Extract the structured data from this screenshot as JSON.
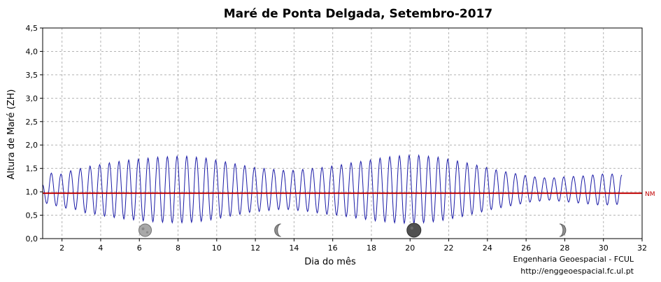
{
  "chart_data": {
    "type": "line",
    "title": "Maré de Ponta Delgada, Setembro-2017",
    "xlabel": "Dia do mês",
    "ylabel": "Altura de Maré (ZH)",
    "xlim": [
      1,
      32
    ],
    "ylim": [
      0,
      4.5
    ],
    "x_ticks": [
      2,
      4,
      6,
      8,
      10,
      12,
      14,
      16,
      18,
      20,
      22,
      24,
      26,
      28,
      30,
      32
    ],
    "y_ticks": [
      "0,0",
      "0,5",
      "1,0",
      "1,5",
      "2,0",
      "2,5",
      "3,0",
      "3,5",
      "4,0",
      "4,5"
    ],
    "grid": true,
    "colors": {
      "tide": "#1a1aa6",
      "mean_level": "#c00000"
    },
    "mean_level": {
      "label": "NM",
      "value": 0.97
    },
    "series": [
      {
        "values_note": "semidiurnal tide; high/low water per tide cycle (day, height m ZH)",
        "extremes": [
          [
            1.0,
            1.15
          ],
          [
            1.21,
            0.75
          ],
          [
            1.45,
            1.4
          ],
          [
            1.7,
            0.7
          ],
          [
            1.95,
            1.38
          ],
          [
            2.2,
            0.65
          ],
          [
            2.45,
            1.45
          ],
          [
            2.7,
            0.62
          ],
          [
            2.95,
            1.5
          ],
          [
            3.2,
            0.55
          ],
          [
            3.45,
            1.55
          ],
          [
            3.7,
            0.52
          ],
          [
            3.95,
            1.58
          ],
          [
            4.2,
            0.48
          ],
          [
            4.45,
            1.62
          ],
          [
            4.7,
            0.45
          ],
          [
            4.95,
            1.65
          ],
          [
            5.2,
            0.42
          ],
          [
            5.45,
            1.68
          ],
          [
            5.7,
            0.4
          ],
          [
            5.95,
            1.7
          ],
          [
            6.2,
            0.38
          ],
          [
            6.45,
            1.72
          ],
          [
            6.7,
            0.36
          ],
          [
            6.95,
            1.74
          ],
          [
            7.2,
            0.35
          ],
          [
            7.45,
            1.75
          ],
          [
            7.7,
            0.34
          ],
          [
            7.95,
            1.76
          ],
          [
            8.2,
            0.34
          ],
          [
            8.45,
            1.76
          ],
          [
            8.7,
            0.35
          ],
          [
            8.95,
            1.74
          ],
          [
            9.2,
            0.37
          ],
          [
            9.45,
            1.72
          ],
          [
            9.7,
            0.4
          ],
          [
            9.95,
            1.68
          ],
          [
            10.2,
            0.44
          ],
          [
            10.45,
            1.64
          ],
          [
            10.7,
            0.48
          ],
          [
            10.95,
            1.6
          ],
          [
            11.2,
            0.52
          ],
          [
            11.45,
            1.56
          ],
          [
            11.7,
            0.56
          ],
          [
            11.95,
            1.52
          ],
          [
            12.2,
            0.58
          ],
          [
            12.45,
            1.5
          ],
          [
            12.7,
            0.6
          ],
          [
            12.95,
            1.48
          ],
          [
            13.2,
            0.62
          ],
          [
            13.45,
            1.46
          ],
          [
            13.7,
            0.62
          ],
          [
            13.95,
            1.46
          ],
          [
            14.2,
            0.6
          ],
          [
            14.45,
            1.48
          ],
          [
            14.7,
            0.58
          ],
          [
            14.95,
            1.5
          ],
          [
            15.2,
            0.55
          ],
          [
            15.45,
            1.52
          ],
          [
            15.7,
            0.52
          ],
          [
            15.95,
            1.55
          ],
          [
            16.2,
            0.5
          ],
          [
            16.45,
            1.58
          ],
          [
            16.7,
            0.47
          ],
          [
            16.95,
            1.62
          ],
          [
            17.2,
            0.44
          ],
          [
            17.45,
            1.65
          ],
          [
            17.7,
            0.41
          ],
          [
            17.95,
            1.68
          ],
          [
            18.2,
            0.38
          ],
          [
            18.45,
            1.72
          ],
          [
            18.7,
            0.36
          ],
          [
            18.95,
            1.75
          ],
          [
            19.2,
            0.34
          ],
          [
            19.45,
            1.77
          ],
          [
            19.7,
            0.33
          ],
          [
            19.95,
            1.78
          ],
          [
            20.2,
            0.33
          ],
          [
            20.45,
            1.78
          ],
          [
            20.7,
            0.34
          ],
          [
            20.95,
            1.76
          ],
          [
            21.2,
            0.36
          ],
          [
            21.45,
            1.74
          ],
          [
            21.7,
            0.39
          ],
          [
            21.95,
            1.7
          ],
          [
            22.2,
            0.43
          ],
          [
            22.45,
            1.66
          ],
          [
            22.7,
            0.47
          ],
          [
            22.95,
            1.62
          ],
          [
            23.2,
            0.52
          ],
          [
            23.45,
            1.57
          ],
          [
            23.7,
            0.57
          ],
          [
            23.95,
            1.52
          ],
          [
            24.2,
            0.62
          ],
          [
            24.45,
            1.47
          ],
          [
            24.7,
            0.66
          ],
          [
            24.95,
            1.43
          ],
          [
            25.2,
            0.7
          ],
          [
            25.45,
            1.39
          ],
          [
            25.7,
            0.74
          ],
          [
            25.95,
            1.35
          ],
          [
            26.2,
            0.78
          ],
          [
            26.45,
            1.32
          ],
          [
            26.7,
            0.8
          ],
          [
            26.95,
            1.3
          ],
          [
            27.2,
            0.82
          ],
          [
            27.45,
            1.3
          ],
          [
            27.7,
            0.8
          ],
          [
            27.95,
            1.32
          ],
          [
            28.2,
            0.78
          ],
          [
            28.45,
            1.33
          ],
          [
            28.7,
            0.76
          ],
          [
            28.95,
            1.34
          ],
          [
            29.2,
            0.74
          ],
          [
            29.45,
            1.36
          ],
          [
            29.7,
            0.72
          ],
          [
            29.95,
            1.38
          ],
          [
            30.2,
            0.72
          ],
          [
            30.45,
            1.38
          ],
          [
            30.7,
            0.73
          ],
          [
            30.95,
            1.36
          ]
        ]
      }
    ],
    "moon_phases": [
      {
        "day": 6.3,
        "phase": "full-moon"
      },
      {
        "day": 13.25,
        "phase": "last-quarter"
      },
      {
        "day": 20.2,
        "phase": "new-moon"
      },
      {
        "day": 27.8,
        "phase": "first-quarter"
      }
    ]
  },
  "credits": {
    "line1": "Engenharia Geoespacial - FCUL",
    "line2": "http://enggeoespacial.fc.ul.pt"
  }
}
